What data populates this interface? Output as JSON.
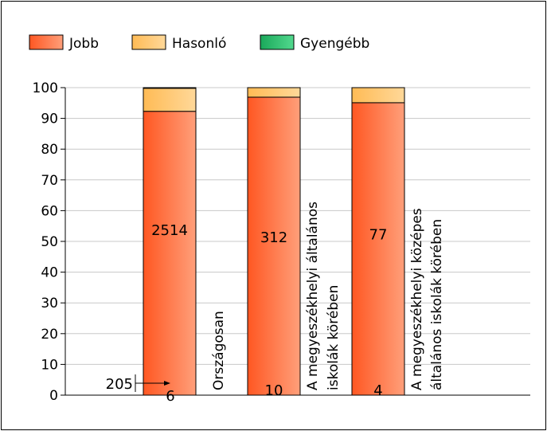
{
  "chart_data": {
    "type": "bar",
    "stacked": true,
    "categories": [
      [
        "Országosan"
      ],
      [
        "A megyeszékhelyi általános",
        "iskolák körében"
      ],
      [
        "A megyeszékhelyi középes",
        "általános iskolák körében"
      ]
    ],
    "series": [
      {
        "name": "Jobb",
        "color": "#ff6633",
        "values": [
          92.3,
          96.9,
          95.1
        ],
        "labels": [
          "2514",
          "312",
          "77"
        ]
      },
      {
        "name": "Hasonló",
        "color": "#ffcc77",
        "values": [
          7.5,
          3.1,
          4.9
        ],
        "labels": [
          "205",
          "10",
          "4"
        ]
      },
      {
        "name": "Gyengébb",
        "color": "#2ebd6e",
        "values": [
          0.2,
          0.0,
          0.0
        ],
        "labels": [
          "6",
          "",
          ""
        ]
      }
    ],
    "ylim": [
      0,
      100
    ],
    "yticks": [
      "0",
      "10",
      "20",
      "30",
      "40",
      "50",
      "60",
      "70",
      "80",
      "90",
      "100"
    ],
    "grid": true,
    "legend_position": "top-left"
  }
}
